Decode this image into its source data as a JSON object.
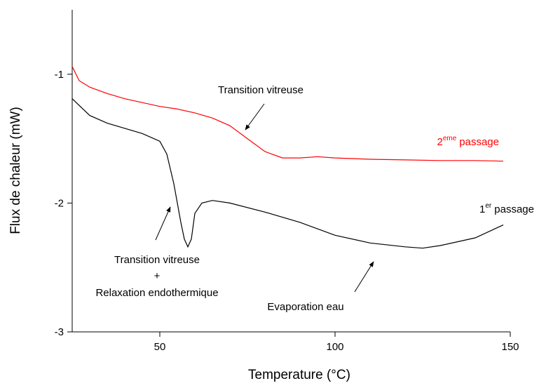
{
  "chart_data": {
    "type": "line",
    "x_label": "Temperature (°C)",
    "y_label": "Flux de chaleur (mW)",
    "xlim": [
      25,
      150
    ],
    "ylim": [
      -3,
      -0.5
    ],
    "xticks": [
      50,
      100,
      150
    ],
    "yticks": [
      -1,
      -2,
      -3
    ],
    "series": [
      {
        "label": {
          "base": "2",
          "sup": "eme",
          "text": "passage"
        },
        "color": "#ff0000",
        "x": [
          25,
          27,
          30,
          35,
          40,
          45,
          50,
          55,
          60,
          65,
          70,
          75,
          80,
          85,
          90,
          95,
          100,
          110,
          120,
          130,
          140,
          148
        ],
        "values": [
          -0.94,
          -1.05,
          -1.1,
          -1.15,
          -1.19,
          -1.22,
          -1.25,
          -1.27,
          -1.3,
          -1.34,
          -1.4,
          -1.5,
          -1.6,
          -1.65,
          -1.65,
          -1.64,
          -1.65,
          -1.66,
          -1.665,
          -1.67,
          -1.67,
          -1.675
        ]
      },
      {
        "label": {
          "base": "1",
          "sup": "er",
          "text": "passage"
        },
        "color": "#000000",
        "x": [
          25,
          30,
          35,
          40,
          45,
          50,
          52,
          54,
          56,
          57,
          58,
          59,
          60,
          62,
          65,
          70,
          80,
          90,
          100,
          110,
          120,
          125,
          130,
          140,
          148
        ],
        "values": [
          -1.19,
          -1.32,
          -1.38,
          -1.42,
          -1.46,
          -1.52,
          -1.62,
          -1.85,
          -2.15,
          -2.28,
          -2.34,
          -2.28,
          -2.08,
          -2.0,
          -1.98,
          -2.0,
          -2.07,
          -2.15,
          -2.25,
          -2.31,
          -2.34,
          -2.35,
          -2.33,
          -2.27,
          -2.17
        ]
      }
    ],
    "annotations": {
      "glass_top": "Transition vitreuse",
      "glass_bottom": [
        "Transition vitreuse",
        "+",
        "Relaxation endothermique"
      ],
      "evaporation": "Evaporation eau"
    }
  }
}
